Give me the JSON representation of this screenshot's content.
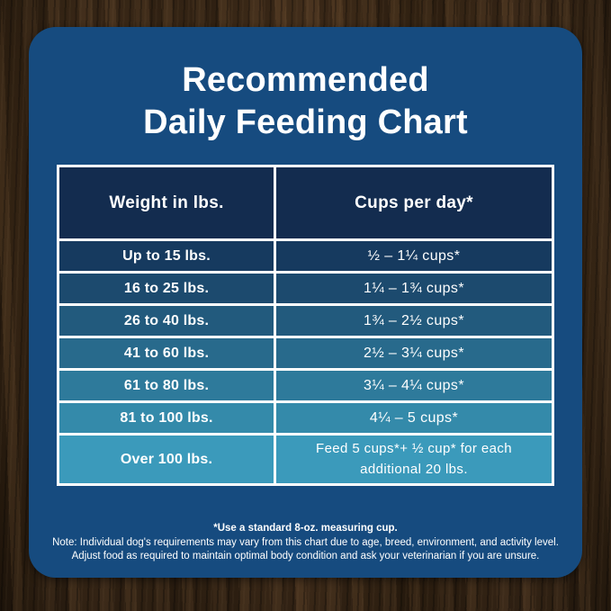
{
  "chart_data": {
    "type": "table",
    "title_line1": "Recommended",
    "title_line2": "Daily Feeding Chart",
    "columns": [
      "Weight in lbs.",
      "Cups per day*"
    ],
    "rows": [
      [
        "Up to 15 lbs.",
        "½ – 1¼ cups*"
      ],
      [
        "16 to 25 lbs.",
        "1¼ – 1¾  cups*"
      ],
      [
        "26 to 40 lbs.",
        "1¾ – 2½ cups*"
      ],
      [
        "41 to 60 lbs.",
        "2½ – 3¼ cups*"
      ],
      [
        "61 to 80 lbs.",
        "3¼ – 4¼ cups*"
      ],
      [
        "81 to 100 lbs.",
        "4¼ – 5 cups*"
      ],
      [
        "Over 100 lbs.",
        "Feed 5 cups*+ ½ cup* for each additional 20 lbs."
      ]
    ]
  },
  "footnotes": {
    "measuring_cup": "*Use a standard 8-oz. measuring cup.",
    "note_line1": "Note: Individual dog's requirements may vary from this chart due to age, breed, environment, and activity level.",
    "note_line2": "Adjust food as required to maintain optimal body condition and ask your veterinarian if you are unsure."
  },
  "colors": {
    "card_bg": "#164b7f",
    "header_bg": "#132c4f",
    "border": "#ffffff",
    "text": "#ffffff",
    "wood_base": "#3f2d1b",
    "row_bgs": [
      "#163a5f",
      "#1c4a6e",
      "#225a7d",
      "#286a8c",
      "#2e7a9b",
      "#348aaa",
      "#3b9abb"
    ]
  }
}
